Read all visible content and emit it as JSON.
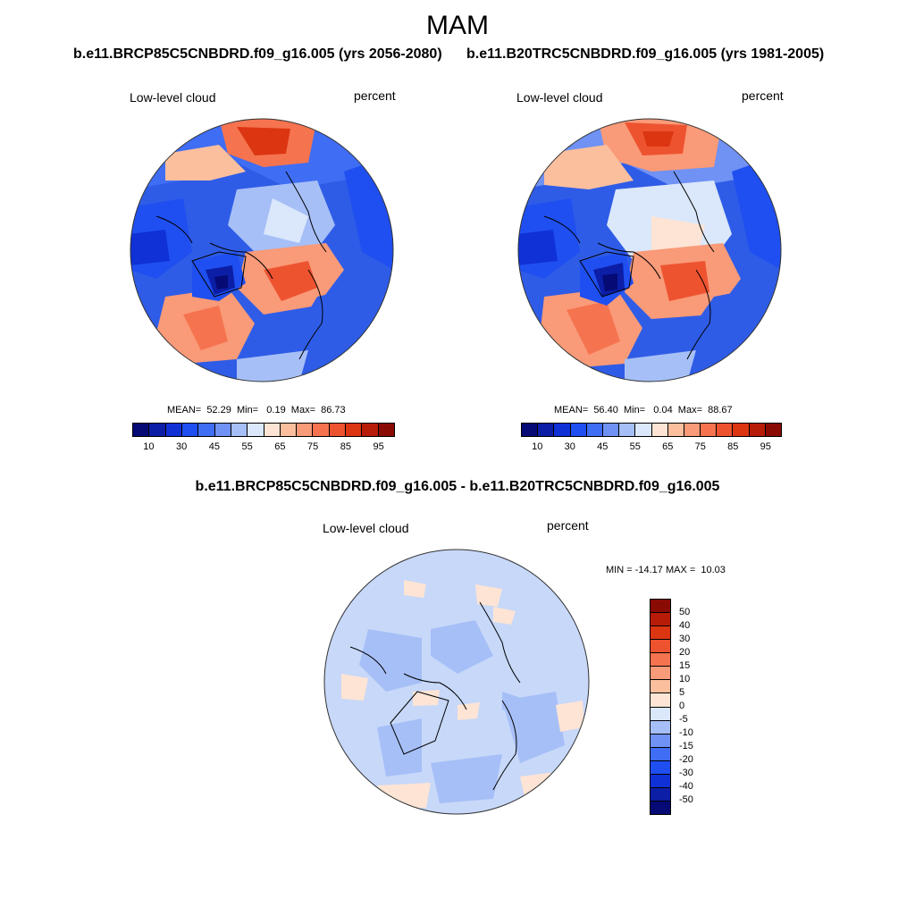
{
  "title": "MAM",
  "panels": [
    {
      "run": "b.e11.BRCP85C5CNBDRD.f09_g16.005 (yrs 2056-2080)",
      "variable": "Low-level cloud",
      "units": "percent",
      "stats_text": "MEAN=  52.29  Min=   0.19  Max=  86.73"
    },
    {
      "run": "b.e11.B20TRC5CNBDRD.f09_g16.005 (yrs 1981-2005)",
      "variable": "Low-level cloud",
      "units": "percent",
      "stats_text": "MEAN=  56.40  Min=   0.04  Max=  88.67"
    }
  ],
  "diff_panel": {
    "run": "b.e11.BRCP85C5CNBDRD.f09_g16.005 - b.e11.B20TRC5CNBDRD.f09_g16.005",
    "variable": "Low-level cloud",
    "units": "percent",
    "stats_text": "MIN = -14.17 MAX =  10.03"
  },
  "chart_data": [
    {
      "type": "map",
      "projection": "north polar stereographic",
      "season": "MAM",
      "variable": "Low-level cloud",
      "units": "percent",
      "case": "b.e11.BRCP85C5CNBDRD.f09_g16.005",
      "years": "2056-2080",
      "mean": 52.29,
      "min": 0.19,
      "max": 86.73,
      "colorbar_ticks": [
        "10",
        "30",
        "45",
        "55",
        "65",
        "75",
        "85",
        "95"
      ],
      "colorbar_colors": [
        "#050a75",
        "#0b1ea5",
        "#0f31d6",
        "#1f4ff0",
        "#3f6df3",
        "#6f92f4",
        "#a6bff7",
        "#dbe7fb",
        "#fde4d4",
        "#fbbf9e",
        "#f99a78",
        "#f5744f",
        "#ee5330",
        "#dc3512",
        "#b71c08",
        "#8a0a04"
      ]
    },
    {
      "type": "map",
      "projection": "north polar stereographic",
      "season": "MAM",
      "variable": "Low-level cloud",
      "units": "percent",
      "case": "b.e11.B20TRC5CNBDRD.f09_g16.005",
      "years": "1981-2005",
      "mean": 56.4,
      "min": 0.04,
      "max": 88.67,
      "colorbar_ticks": [
        "10",
        "30",
        "45",
        "55",
        "65",
        "75",
        "85",
        "95"
      ],
      "colorbar_colors": [
        "#050a75",
        "#0b1ea5",
        "#0f31d6",
        "#1f4ff0",
        "#3f6df3",
        "#6f92f4",
        "#a6bff7",
        "#dbe7fb",
        "#fde4d4",
        "#fbbf9e",
        "#f99a78",
        "#f5744f",
        "#ee5330",
        "#dc3512",
        "#b71c08",
        "#8a0a04"
      ]
    },
    {
      "type": "map",
      "projection": "north polar stereographic",
      "season": "MAM",
      "variable": "Low-level cloud",
      "units": "percent",
      "case": "b.e11.BRCP85C5CNBDRD.f09_g16.005 - b.e11.B20TRC5CNBDRD.f09_g16.005",
      "min": -14.17,
      "max": 10.03,
      "colorbar_ticks": [
        "50",
        "40",
        "30",
        "20",
        "15",
        "10",
        "5",
        "0",
        "-5",
        "-10",
        "-15",
        "-20",
        "-30",
        "-40",
        "-50"
      ],
      "colorbar_colors": [
        "#8a0a04",
        "#b71c08",
        "#dc3512",
        "#ee5330",
        "#f5744f",
        "#f99a78",
        "#fbbf9e",
        "#fde4d4",
        "#dbe7fb",
        "#a6bff7",
        "#6f92f4",
        "#3f6df3",
        "#1f4ff0",
        "#0f31d6",
        "#0b1ea5",
        "#050a75"
      ]
    }
  ]
}
